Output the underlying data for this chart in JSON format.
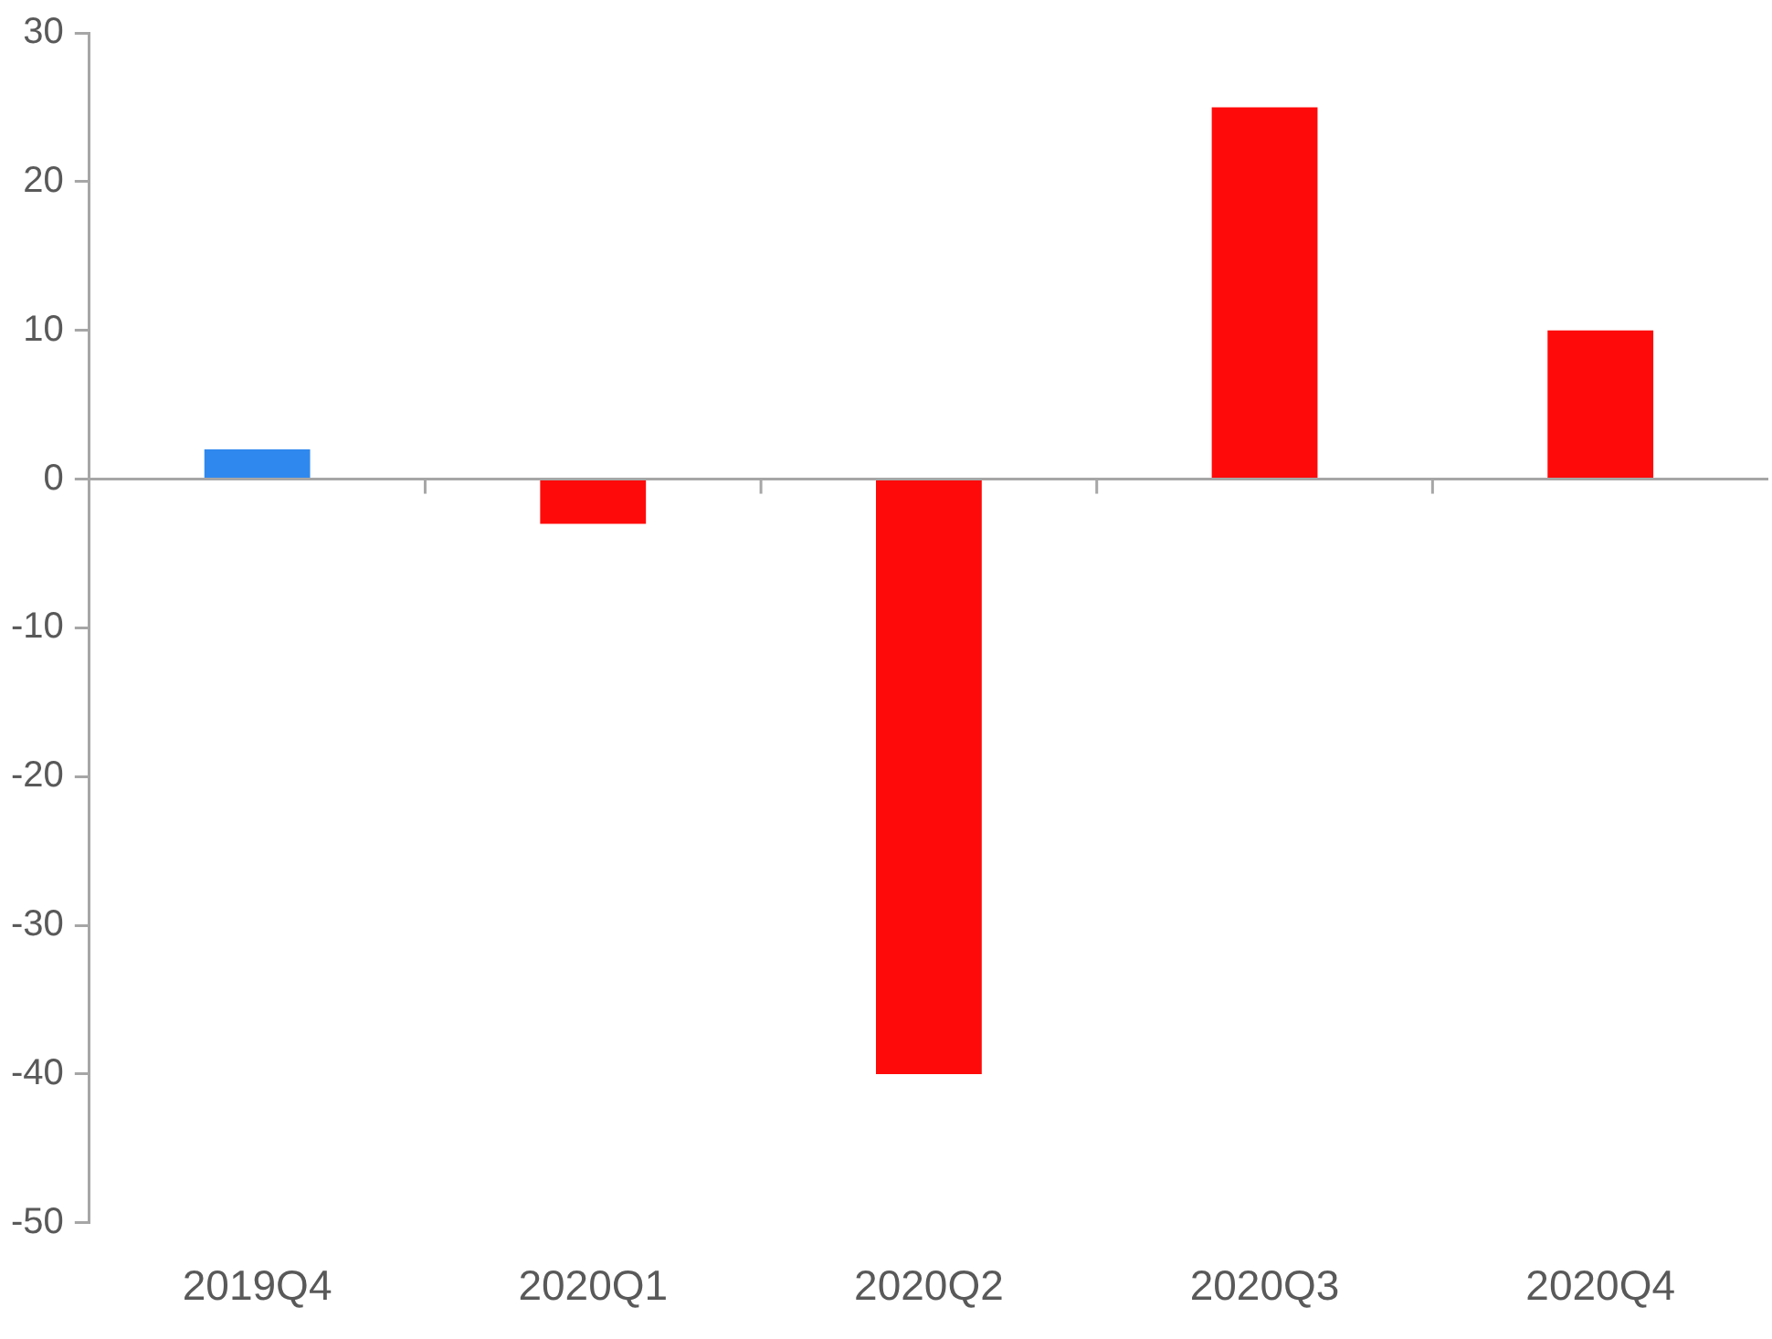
{
  "chart_data": {
    "type": "bar",
    "categories": [
      "2019Q4",
      "2020Q1",
      "2020Q2",
      "2020Q3",
      "2020Q4"
    ],
    "values": [
      2,
      -3,
      -40,
      25,
      10
    ],
    "colors": [
      "#2f88ee",
      "#ff0a0a",
      "#ff0a0a",
      "#ff0a0a",
      "#ff0a0a"
    ],
    "ylim": [
      -50,
      30
    ],
    "yticks": [
      -50,
      -40,
      -30,
      -20,
      -10,
      0,
      10,
      20,
      30
    ],
    "legend": false
  }
}
